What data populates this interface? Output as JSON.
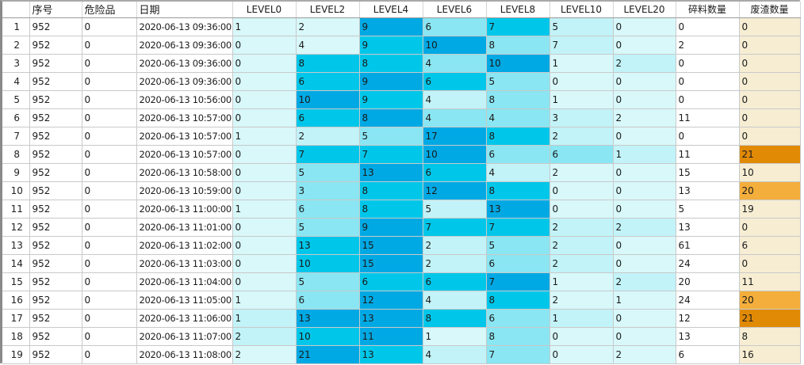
{
  "table": {
    "columns": [
      {
        "key": "rowno",
        "label": ""
      },
      {
        "key": "serial",
        "label": "序号"
      },
      {
        "key": "danger",
        "label": "危险品"
      },
      {
        "key": "date",
        "label": "日期"
      },
      {
        "key": "l0",
        "label": "LEVEL0"
      },
      {
        "key": "l2",
        "label": "LEVEL2"
      },
      {
        "key": "l4",
        "label": "LEVEL4"
      },
      {
        "key": "l6",
        "label": "LEVEL6"
      },
      {
        "key": "l8",
        "label": "LEVEL8"
      },
      {
        "key": "l10",
        "label": "LEVEL10"
      },
      {
        "key": "l20",
        "label": "LEVEL20"
      },
      {
        "key": "scrap",
        "label": "碎料数量"
      },
      {
        "key": "waste",
        "label": "废渣数量"
      }
    ],
    "rows": [
      {
        "rowno": "1",
        "serial": "952",
        "danger": "0",
        "date": "2020-06-13 09:36:00",
        "levels": [
          1,
          2,
          9,
          6,
          7,
          5,
          0
        ],
        "scrap": "0",
        "waste": 0
      },
      {
        "rowno": "2",
        "serial": "952",
        "danger": "0",
        "date": "2020-06-13 09:36:00",
        "levels": [
          0,
          4,
          9,
          10,
          8,
          7,
          0
        ],
        "scrap": "2",
        "waste": 0
      },
      {
        "rowno": "3",
        "serial": "952",
        "danger": "0",
        "date": "2020-06-13 09:36:00",
        "levels": [
          0,
          8,
          8,
          4,
          10,
          1,
          2
        ],
        "scrap": "0",
        "waste": 0
      },
      {
        "rowno": "4",
        "serial": "952",
        "danger": "0",
        "date": "2020-06-13 09:36:00",
        "levels": [
          0,
          6,
          9,
          6,
          5,
          0,
          0
        ],
        "scrap": "0",
        "waste": 0
      },
      {
        "rowno": "5",
        "serial": "952",
        "danger": "0",
        "date": "2020-06-13 10:56:00",
        "levels": [
          0,
          10,
          9,
          4,
          8,
          1,
          0
        ],
        "scrap": "0",
        "waste": 0
      },
      {
        "rowno": "6",
        "serial": "952",
        "danger": "0",
        "date": "2020-06-13 10:57:00",
        "levels": [
          0,
          6,
          8,
          4,
          4,
          3,
          2
        ],
        "scrap": "11",
        "waste": 0
      },
      {
        "rowno": "7",
        "serial": "952",
        "danger": "0",
        "date": "2020-06-13 10:57:00",
        "levels": [
          1,
          2,
          5,
          17,
          8,
          2,
          0
        ],
        "scrap": "0",
        "waste": 0
      },
      {
        "rowno": "8",
        "serial": "952",
        "danger": "0",
        "date": "2020-06-13 10:57:00",
        "levels": [
          0,
          7,
          7,
          10,
          6,
          6,
          1
        ],
        "scrap": "11",
        "waste": 21
      },
      {
        "rowno": "9",
        "serial": "952",
        "danger": "0",
        "date": "2020-06-13 10:58:00",
        "levels": [
          0,
          5,
          13,
          6,
          4,
          2,
          0
        ],
        "scrap": "15",
        "waste": 10
      },
      {
        "rowno": "10",
        "serial": "952",
        "danger": "0",
        "date": "2020-06-13 10:59:00",
        "levels": [
          0,
          3,
          8,
          12,
          8,
          0,
          0
        ],
        "scrap": "13",
        "waste": 20
      },
      {
        "rowno": "11",
        "serial": "952",
        "danger": "0",
        "date": "2020-06-13 11:00:00",
        "levels": [
          1,
          6,
          8,
          5,
          13,
          0,
          0
        ],
        "scrap": "5",
        "waste": 19
      },
      {
        "rowno": "12",
        "serial": "952",
        "danger": "0",
        "date": "2020-06-13 11:01:00",
        "levels": [
          0,
          5,
          9,
          7,
          7,
          2,
          2
        ],
        "scrap": "13",
        "waste": 0
      },
      {
        "rowno": "13",
        "serial": "952",
        "danger": "0",
        "date": "2020-06-13 11:02:00",
        "levels": [
          0,
          13,
          15,
          2,
          5,
          2,
          0
        ],
        "scrap": "61",
        "waste": 6
      },
      {
        "rowno": "14",
        "serial": "952",
        "danger": "0",
        "date": "2020-06-13 11:03:00",
        "levels": [
          0,
          10,
          15,
          2,
          6,
          2,
          0
        ],
        "scrap": "24",
        "waste": 0
      },
      {
        "rowno": "15",
        "serial": "952",
        "danger": "0",
        "date": "2020-06-13 11:04:00",
        "levels": [
          0,
          5,
          6,
          6,
          7,
          1,
          2
        ],
        "scrap": "20",
        "waste": 11
      },
      {
        "rowno": "16",
        "serial": "952",
        "danger": "0",
        "date": "2020-06-13 11:05:00",
        "levels": [
          1,
          6,
          12,
          4,
          8,
          2,
          1
        ],
        "scrap": "24",
        "waste": 20
      },
      {
        "rowno": "17",
        "serial": "952",
        "danger": "0",
        "date": "2020-06-13 11:06:00",
        "levels": [
          1,
          13,
          13,
          8,
          6,
          1,
          0
        ],
        "scrap": "12",
        "waste": 21
      },
      {
        "rowno": "18",
        "serial": "952",
        "danger": "0",
        "date": "2020-06-13 11:07:00",
        "levels": [
          2,
          10,
          11,
          1,
          8,
          0,
          0
        ],
        "scrap": "13",
        "waste": 8
      },
      {
        "rowno": "19",
        "serial": "952",
        "danger": "0",
        "date": "2020-06-13 11:08:00",
        "levels": [
          2,
          21,
          13,
          4,
          7,
          0,
          2
        ],
        "scrap": "6",
        "waste": 16
      }
    ],
    "colors": {
      "level_tiers": [
        "#00A9E4",
        "#00C7EA",
        "#8AE6F2",
        "#C2F3F8",
        "#D8F8FA"
      ],
      "level_zero": "#D8F8FA",
      "waste_default": "#F6EDD3",
      "waste_20": "#F4AE3C",
      "waste_21": "#E18A06",
      "scrap_bg": "#FFFFFF",
      "grid_line": "#C9C9C9"
    }
  }
}
